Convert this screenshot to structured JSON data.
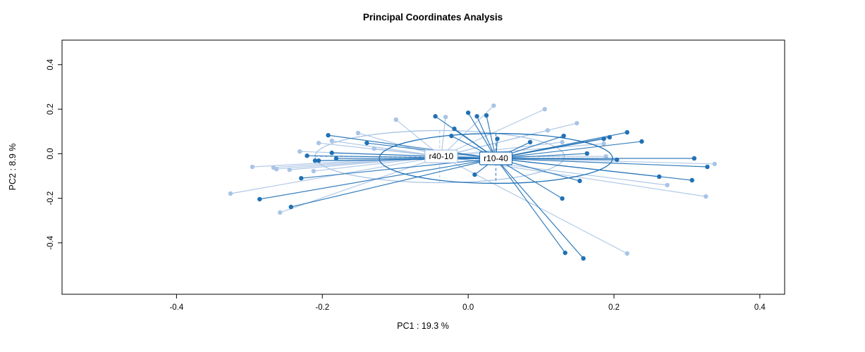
{
  "chart_data": {
    "type": "scatter",
    "title": "Principal Coordinates Analysis",
    "xlabel": "PC1 :  19.3 %",
    "ylabel": "PC2 :  8.9 %",
    "xlim": [
      -0.557,
      0.434
    ],
    "ylim": [
      -0.631,
      0.51
    ],
    "grid": false,
    "legend_position": "none",
    "x_ticks": [
      {
        "value": -0.4,
        "label": "-0.4"
      },
      {
        "value": -0.2,
        "label": "-0.2"
      },
      {
        "value": 0.0,
        "label": "0.0"
      },
      {
        "value": 0.2,
        "label": "0.2"
      },
      {
        "value": 0.4,
        "label": "0.4"
      }
    ],
    "y_ticks": [
      {
        "value": -0.4,
        "label": "-0.4"
      },
      {
        "value": -0.2,
        "label": "-0.2"
      },
      {
        "value": 0.0,
        "label": "0.0"
      },
      {
        "value": 0.2,
        "label": "0.2"
      },
      {
        "value": 0.4,
        "label": "0.4"
      }
    ],
    "groups": [
      {
        "name": "r40-10",
        "color": "#a9c4e5",
        "centroid": [
          -0.037,
          -0.012
        ],
        "ellipse": {
          "cx": -0.039,
          "cy": -0.013,
          "rx": 0.171,
          "ry": 0.117
        },
        "points": [
          [
            -0.099,
            0.153
          ],
          [
            -0.151,
            0.093
          ],
          [
            -0.205,
            0.048
          ],
          [
            -0.187,
            0.058
          ],
          [
            -0.129,
            0.023
          ],
          [
            -0.231,
            0.01
          ],
          [
            -0.296,
            -0.059
          ],
          [
            -0.267,
            -0.062
          ],
          [
            -0.263,
            -0.069
          ],
          [
            -0.245,
            -0.072
          ],
          [
            -0.212,
            -0.078
          ],
          [
            -0.326,
            -0.179
          ],
          [
            -0.258,
            -0.264
          ],
          [
            -0.031,
            0.165
          ],
          [
            0.035,
            0.216
          ],
          [
            0.105,
            0.2
          ],
          [
            0.149,
            0.137
          ],
          [
            0.109,
            0.105
          ],
          [
            0.129,
            0.052
          ],
          [
            0.186,
            0.045
          ],
          [
            0.189,
            -0.012
          ],
          [
            0.338,
            -0.046
          ],
          [
            0.326,
            -0.192
          ],
          [
            0.273,
            -0.141
          ],
          [
            0.218,
            -0.448
          ]
        ]
      },
      {
        "name": "r10-40",
        "color": "#2171b5",
        "centroid": [
          0.038,
          -0.021
        ],
        "ellipse": {
          "cx": 0.038,
          "cy": -0.021,
          "rx": 0.16,
          "ry": 0.112
        },
        "points": [
          [
            -0.192,
            0.083
          ],
          [
            -0.139,
            0.048
          ],
          [
            -0.221,
            -0.009
          ],
          [
            -0.187,
            0.004
          ],
          [
            -0.21,
            -0.031
          ],
          [
            -0.205,
            -0.031
          ],
          [
            -0.181,
            -0.021
          ],
          [
            -0.229,
            -0.11
          ],
          [
            -0.286,
            -0.204
          ],
          [
            -0.243,
            -0.239
          ],
          [
            -0.045,
            0.168
          ],
          [
            0.012,
            0.168
          ],
          [
            0.025,
            0.172
          ],
          [
            0.0,
            0.184
          ],
          [
            -0.019,
            0.112
          ],
          [
            -0.023,
            0.08
          ],
          [
            0.04,
            0.067
          ],
          [
            0.085,
            0.052
          ],
          [
            0.131,
            0.08
          ],
          [
            0.009,
            -0.094
          ],
          [
            0.153,
            -0.122
          ],
          [
            0.129,
            -0.201
          ],
          [
            0.133,
            -0.445
          ],
          [
            0.158,
            -0.47
          ],
          [
            0.218,
            0.096
          ],
          [
            0.194,
            0.074
          ],
          [
            0.186,
            0.067
          ],
          [
            0.238,
            0.055
          ],
          [
            0.163,
            0.001
          ],
          [
            0.204,
            -0.027
          ],
          [
            0.31,
            -0.021
          ],
          [
            0.328,
            -0.059
          ],
          [
            0.262,
            -0.103
          ],
          [
            0.307,
            -0.119
          ]
        ]
      }
    ]
  }
}
